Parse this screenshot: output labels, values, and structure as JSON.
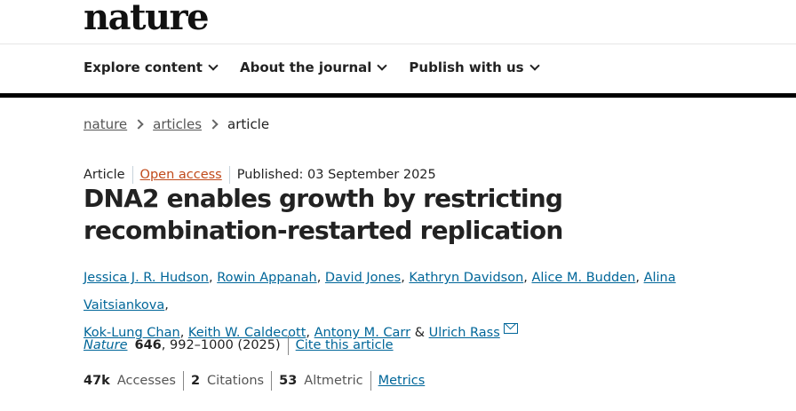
{
  "header": {
    "logo": "nature",
    "nav": [
      {
        "label": "Explore content"
      },
      {
        "label": "About the journal"
      },
      {
        "label": "Publish with us"
      }
    ]
  },
  "breadcrumb": [
    "nature",
    "articles",
    "article"
  ],
  "article": {
    "type": "Article",
    "access": "Open access",
    "published": "Published: 03 September 2025",
    "title": "DNA2 enables growth by restricting recombination-restarted replication",
    "authors": [
      "Jessica J. R. Hudson",
      "Rowin Appanah",
      "David Jones",
      "Kathryn Davidson",
      "Alice M. Budden",
      "Alina Vaitsiankova",
      "Kok-Lung Chan",
      "Keith W. Caldecott",
      "Antony M. Carr",
      "Ulrich Rass"
    ],
    "citation": {
      "journal": "Nature",
      "volume": "646",
      "pages": ", 992–1000 (2025)",
      "cite_label": "Cite this article"
    },
    "metrics": {
      "accesses": "47k",
      "accesses_label": "Accesses",
      "citations": "2",
      "citations_label": "Citations",
      "altmetric": "53",
      "altmetric_label": "Altmetric",
      "metrics_link": "Metrics"
    }
  },
  "colors": {
    "link": "#006699",
    "open_access": "#c14a1b"
  }
}
